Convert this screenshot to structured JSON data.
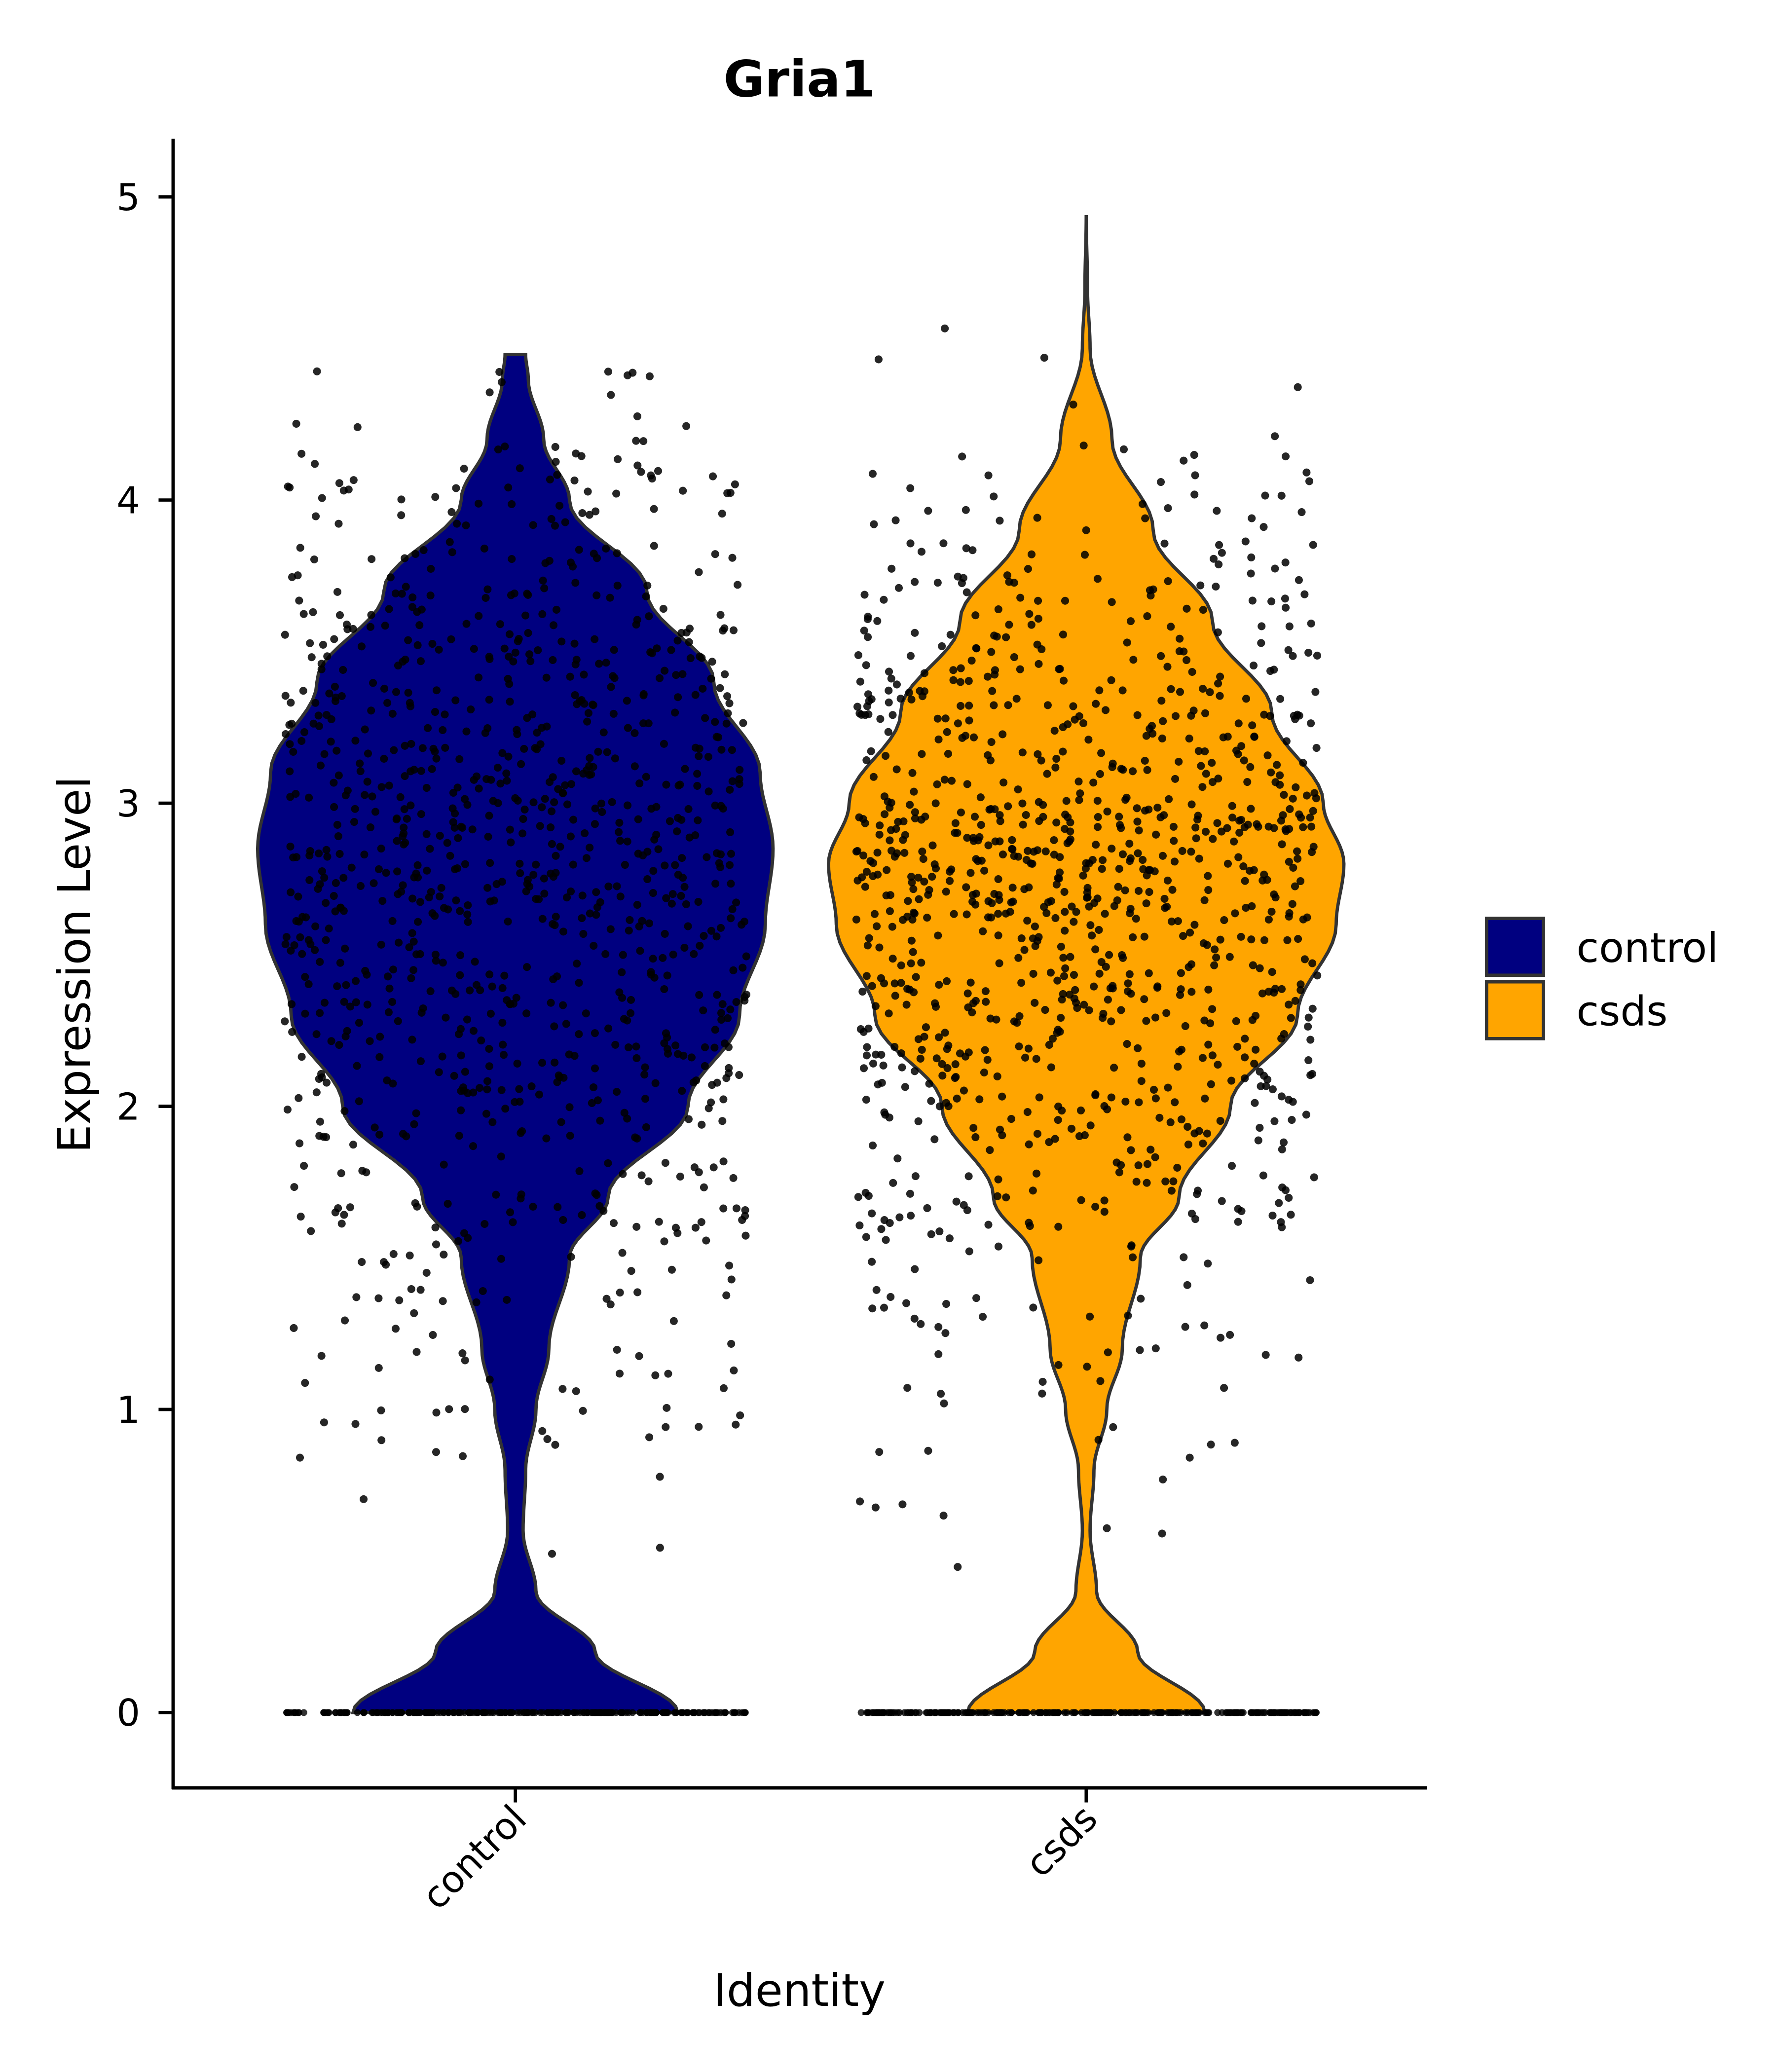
{
  "chart_data": {
    "type": "violin",
    "title": "Gria1",
    "xlabel": "Identity",
    "ylabel": "Expression Level",
    "ylim": [
      -0.25,
      5.2
    ],
    "yticks": [
      "0",
      "1",
      "2",
      "3",
      "4",
      "5"
    ],
    "categories": [
      "control",
      "csds"
    ],
    "legend": {
      "placement": "right",
      "entries": [
        "control",
        "csds"
      ]
    },
    "grid": false,
    "series": [
      {
        "name": "control",
        "color": "#000080",
        "max_value": 4.48,
        "density_profile": {
          "y": [
            0,
            0.2,
            0.4,
            0.6,
            0.8,
            1.0,
            1.2,
            1.5,
            1.7,
            2.0,
            2.3,
            2.6,
            2.85,
            3.1,
            3.4,
            3.7,
            4.0,
            4.2,
            4.4,
            4.48
          ],
          "relative_density": [
            0.63,
            0.31,
            0.08,
            0.03,
            0.04,
            0.08,
            0.13,
            0.21,
            0.36,
            0.67,
            0.87,
            0.97,
            1.0,
            0.95,
            0.77,
            0.51,
            0.21,
            0.11,
            0.05,
            0.04
          ]
        }
      },
      {
        "name": "csds",
        "color": "#FFA500",
        "max_value": 4.94,
        "density_profile": {
          "y": [
            0,
            0.2,
            0.4,
            0.6,
            0.8,
            1.0,
            1.2,
            1.5,
            1.7,
            2.0,
            2.3,
            2.6,
            2.8,
            3.0,
            3.3,
            3.6,
            3.9,
            4.2,
            4.5,
            4.7,
            4.94
          ],
          "relative_density": [
            0.46,
            0.2,
            0.04,
            0.015,
            0.03,
            0.08,
            0.14,
            0.21,
            0.36,
            0.56,
            0.82,
            0.97,
            1.0,
            0.92,
            0.72,
            0.49,
            0.26,
            0.1,
            0.015,
            0.005,
            0.0
          ]
        }
      }
    ],
    "jitter_points_color": "#000000"
  }
}
